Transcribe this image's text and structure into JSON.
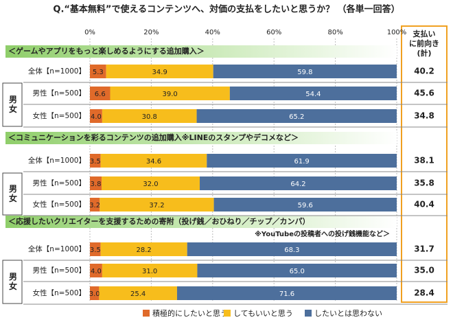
{
  "chart_data": {
    "type": "stacked-bar-horizontal",
    "title": "Q.“基本無料”で使えるコンテンツへ、対価の支払をしたいと思うか？ （各単一回答）",
    "sections": [
      {
        "title": "＜ゲームやアプリをもっと楽しめるようにする追加購入＞"
      },
      {
        "title": "＜コミュニケーションを彩るコンテンツの追加購入※LINEのスタンプやデコメなど＞"
      },
      {
        "title": "＜応援したいクリエイターを支援するための寄附（投げ銭／おひねり／チップ／カンパ）",
        "note": "※YouTubeの投稿者への投げ銭機能など＞"
      }
    ],
    "gender_label": "男女",
    "categories": [
      "全体【n=1000】",
      "男性【n=500】",
      "女性【n=500】",
      "全体【n=1000】",
      "男性【n=500】",
      "女性【n=500】",
      "全体【n=1000】",
      "男性【n=500】",
      "女性【n=500】"
    ],
    "series": [
      {
        "name": "積極的にしたいと思う",
        "color": "#e06a2a",
        "values": [
          5.3,
          6.6,
          4.0,
          3.5,
          3.8,
          3.2,
          3.5,
          4.0,
          3.0
        ],
        "value_labels": [
          "5.3",
          "6.6",
          "4.0",
          "3.5",
          "3.8",
          "3.2",
          "3.5",
          "4.0",
          "3.0"
        ]
      },
      {
        "name": "してもいいと思う",
        "color": "#f7bd1c",
        "values": [
          34.9,
          39.0,
          30.8,
          34.6,
          32.0,
          37.2,
          28.2,
          31.0,
          25.4
        ],
        "value_labels": [
          "34.9",
          "39.0",
          "30.8",
          "34.6",
          "32.0",
          "37.2",
          "28.2",
          "31.0",
          "25.4"
        ]
      },
      {
        "name": "したいとは思わない",
        "color": "#4d6f9c",
        "values": [
          59.8,
          54.4,
          65.2,
          61.9,
          64.2,
          59.6,
          68.3,
          65.0,
          71.6
        ],
        "value_labels": [
          "59.8",
          "54.4",
          "65.2",
          "61.9",
          "64.2",
          "59.6",
          "68.3",
          "65.0",
          "71.6"
        ]
      }
    ],
    "totals": {
      "name": [
        "支払い",
        "に前向き",
        "(計)"
      ],
      "values": [
        40.2,
        45.6,
        34.8,
        38.1,
        35.8,
        40.4,
        31.7,
        35.0,
        28.4
      ],
      "value_labels": [
        "40.2",
        "45.6",
        "34.8",
        "38.1",
        "35.8",
        "40.4",
        "31.7",
        "35.0",
        "28.4"
      ]
    },
    "xlim": [
      0,
      100
    ],
    "xticks": [
      {
        "value": 0,
        "label": "0%"
      },
      {
        "value": 20,
        "label": "20%"
      },
      {
        "value": 40,
        "label": "40%"
      },
      {
        "value": 60,
        "label": "60%"
      },
      {
        "value": 80,
        "label": "80%"
      },
      {
        "value": 100,
        "label": "100%"
      }
    ],
    "grid": true,
    "legend": "bottom"
  }
}
